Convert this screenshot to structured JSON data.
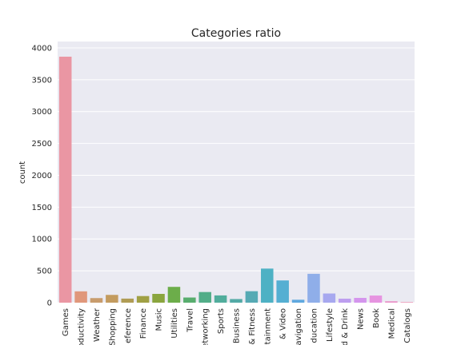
{
  "chart_data": {
    "type": "bar",
    "title": "Categories ratio",
    "xlabel": "",
    "ylabel": "count",
    "ylim": [
      0,
      4100
    ],
    "yticks": [
      0,
      500,
      1000,
      1500,
      2000,
      2500,
      3000,
      3500,
      4000
    ],
    "grid": true,
    "categories": [
      "Games",
      "Productivity",
      "Weather",
      "Shopping",
      "Reference",
      "Finance",
      "Music",
      "Utilities",
      "Travel",
      "Social Networking",
      "Sports",
      "Business",
      "Health & Fitness",
      "Entertainment",
      "Photo & Video",
      "Navigation",
      "Education",
      "Lifestyle",
      "Food & Drink",
      "News",
      "Book",
      "Medical",
      "Catalogs"
    ],
    "tick_labels": [
      "Games",
      "oductivity",
      "Weather",
      "Shopping",
      "eference",
      "Finance",
      "Music",
      "Utilities",
      "Travel",
      "etworking",
      "Sports",
      "Business",
      "& Fitness",
      "tainment",
      "& Video",
      "avigation",
      "ducation",
      "Lifestyle",
      "d & Drink",
      "News",
      "Book",
      "Medical",
      "Catalogs"
    ],
    "values": [
      3862,
      178,
      72,
      122,
      64,
      104,
      138,
      248,
      81,
      167,
      114,
      57,
      180,
      535,
      349,
      46,
      453,
      144,
      63,
      75,
      112,
      23,
      10
    ],
    "colors": [
      "#ea96a3",
      "#e0977b",
      "#c89c6d",
      "#c39b5f",
      "#b09c54",
      "#a0a044",
      "#8aa53e",
      "#6cad4a",
      "#58ad6e",
      "#52ad88",
      "#51ad9c",
      "#53aaa6",
      "#56aab4",
      "#4eb1c4",
      "#55afd2",
      "#5fa8df",
      "#8faee9",
      "#a7a8ef",
      "#bd9eef",
      "#d495ed",
      "#e694e0",
      "#eb97ca",
      "#ee9ab8"
    ]
  }
}
